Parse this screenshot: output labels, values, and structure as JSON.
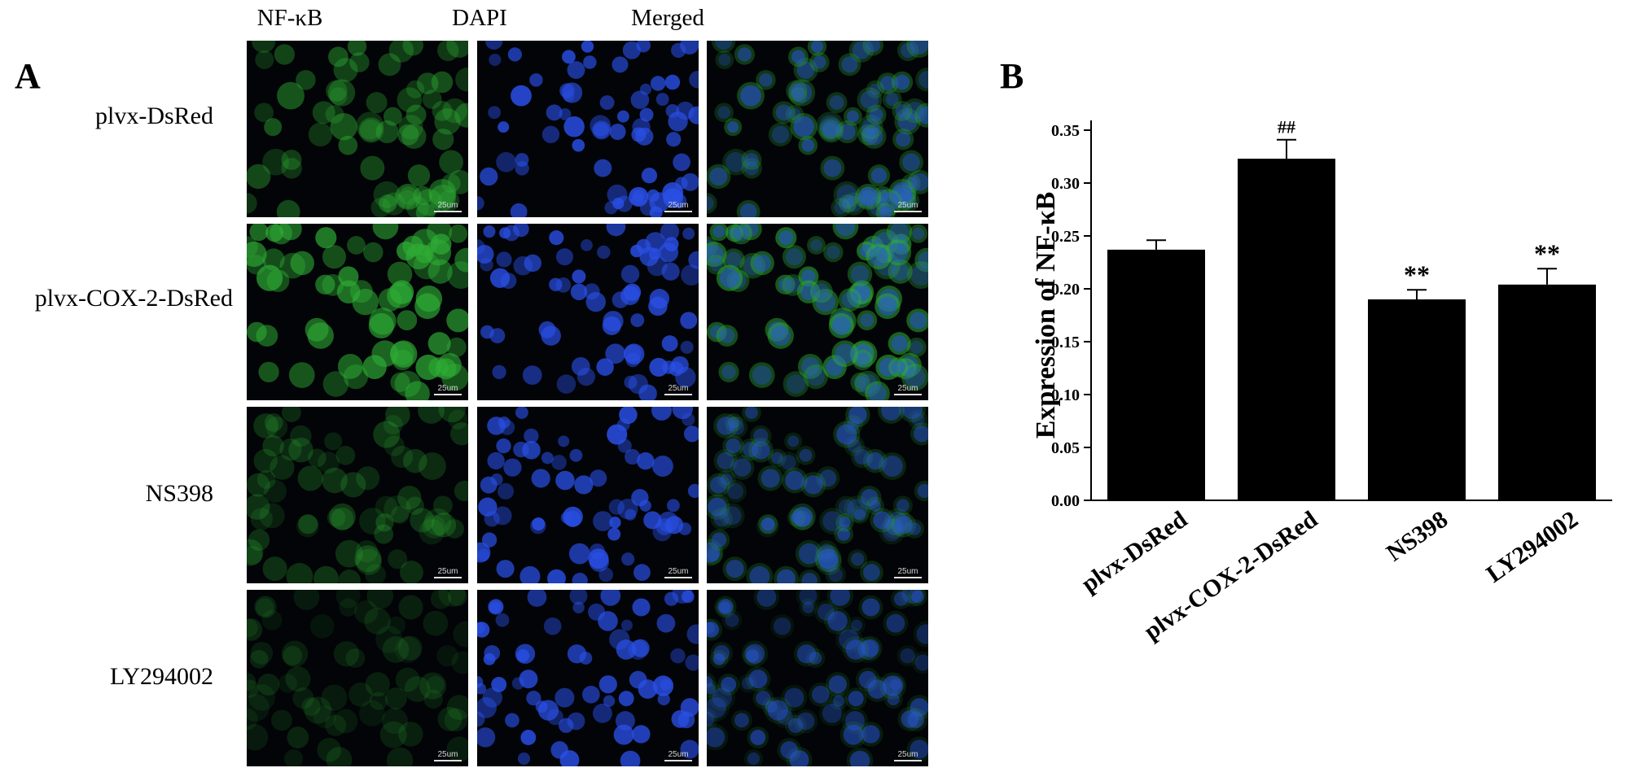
{
  "panel_a": {
    "letter": "A",
    "columns": [
      "NF-κB",
      "DAPI",
      "Merged"
    ],
    "rows": [
      "plvx-DsRed",
      "plvx-COX-2-DsRed",
      "NS398",
      "LY294002"
    ],
    "scale_bar_label": "25um",
    "channel_colors": {
      "nfkb": "#2fae35",
      "dapi": "#2a4fe6",
      "background": "#020407"
    },
    "nfkb_intensity": [
      0.55,
      0.85,
      0.35,
      0.22
    ]
  },
  "panel_b": {
    "letter": "B"
  },
  "chart_data": {
    "type": "bar",
    "categories": [
      "plvx-DsRed",
      "plvx-COX-2-DsRed",
      "NS398",
      "LY294002"
    ],
    "values": [
      0.237,
      0.323,
      0.19,
      0.204
    ],
    "errors": [
      0.009,
      0.018,
      0.009,
      0.015
    ],
    "annotations": [
      "",
      "##",
      "**",
      "**"
    ],
    "ylabel": "Expression of NF-κB",
    "xlabel": "",
    "ylim": [
      0,
      0.35
    ],
    "yticks": [
      "0.00",
      "0.05",
      "0.10",
      "0.15",
      "0.20",
      "0.25",
      "0.30",
      "0.35"
    ],
    "bar_color": "#000000",
    "grid": false
  }
}
